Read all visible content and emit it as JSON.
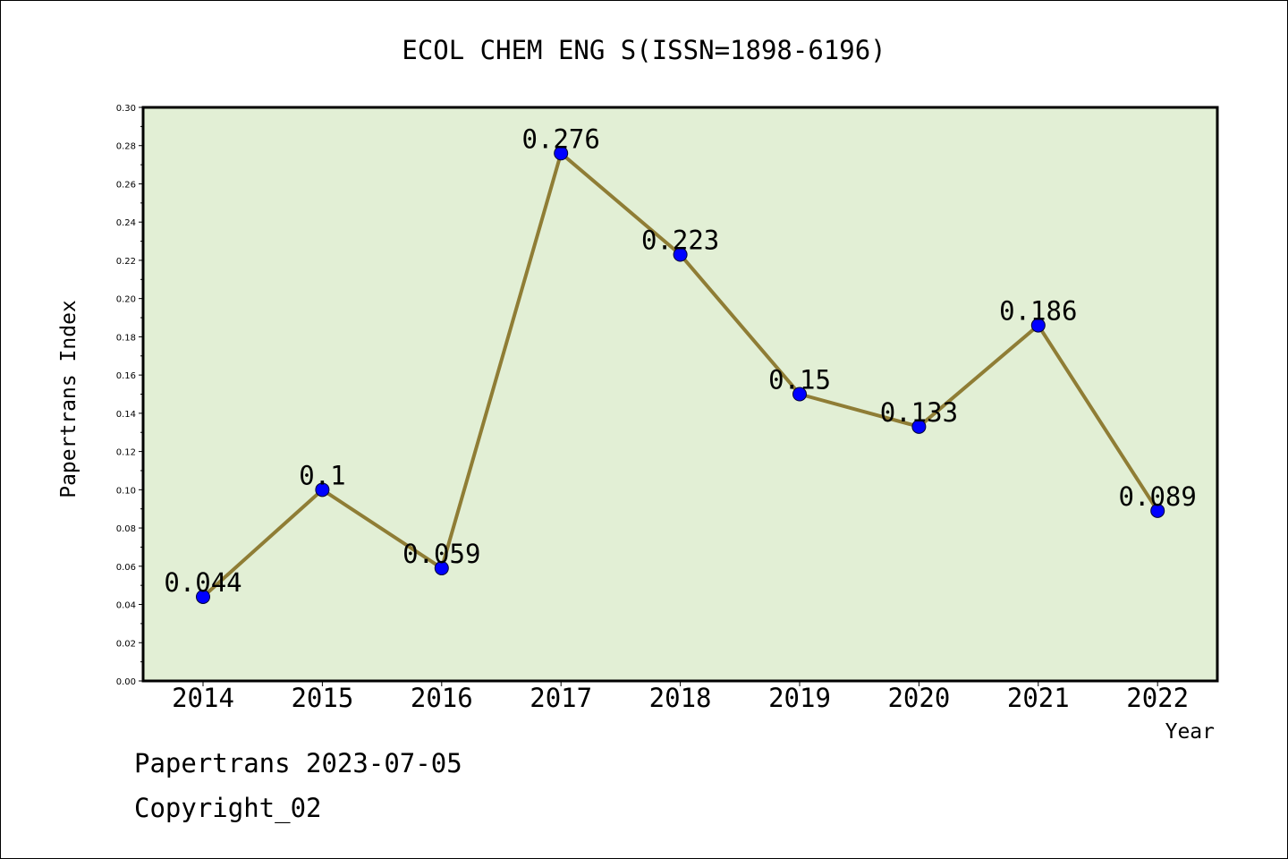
{
  "chart_data": {
    "type": "line",
    "title": "ECOL CHEM ENG S(ISSN=1898-6196)",
    "xlabel": "Year",
    "ylabel": "Papertrans Index",
    "categories": [
      "2014",
      "2015",
      "2016",
      "2017",
      "2018",
      "2019",
      "2020",
      "2021",
      "2022"
    ],
    "values": [
      0.044,
      0.1,
      0.059,
      0.276,
      0.223,
      0.15,
      0.133,
      0.186,
      0.089
    ],
    "data_labels": [
      "0.044",
      "0.1",
      "0.059",
      "0.276",
      "0.223",
      "0.15",
      "0.133",
      "0.186",
      "0.089"
    ],
    "ylim": [
      0,
      0.3
    ],
    "yticks": [
      "0.00",
      "0.02",
      "0.04",
      "0.06",
      "0.08",
      "0.10",
      "0.12",
      "0.14",
      "0.16",
      "0.18",
      "0.20",
      "0.22",
      "0.24",
      "0.26",
      "0.28",
      "0.30"
    ],
    "grid": false,
    "colors": {
      "plot_background": "#e2efd5",
      "line": "#8f7d35",
      "marker": "#0000ff"
    }
  },
  "footer": {
    "line1": "Papertrans 2023-07-05",
    "line2": "Copyright_02"
  }
}
